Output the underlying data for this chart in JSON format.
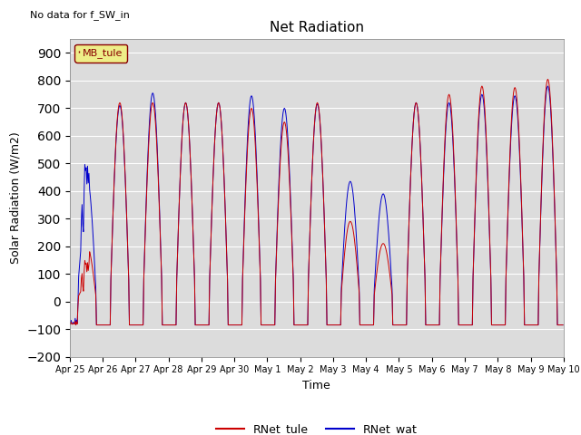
{
  "title": "Net Radiation",
  "xlabel": "Time",
  "ylabel": "Solar Radiation (W/m2)",
  "top_left_text": "No data for f_SW_in",
  "legend_box_text": "MB_tule",
  "ylim": [
    -200,
    950
  ],
  "yticks": [
    -200,
    -100,
    0,
    100,
    200,
    300,
    400,
    500,
    600,
    700,
    800,
    900
  ],
  "background_color": "#e0e0e0",
  "plot_bg_color": "#e8e8e8",
  "line_color_tule": "#cc0000",
  "line_color_wat": "#0000cc",
  "legend_tule": "RNet_tule",
  "legend_wat": "RNet_wat",
  "num_days": 15,
  "xtick_labels": [
    "Apr 25",
    "Apr 26",
    "Apr 27",
    "Apr 28",
    "Apr 29",
    "Apr 30",
    "May 1",
    "May 2",
    "May 3",
    "May 4",
    "May 5",
    "May 6",
    "May 7",
    "May 8",
    "May 9",
    "May 10"
  ],
  "night_val": -85,
  "peaks_tule": [
    200,
    720,
    720,
    720,
    720,
    700,
    650,
    720,
    290,
    210,
    720,
    750,
    780,
    775,
    805
  ],
  "peaks_wat": [
    450,
    710,
    755,
    720,
    720,
    745,
    700,
    715,
    435,
    390,
    720,
    720,
    750,
    745,
    780
  ],
  "mb_box_facecolor": "#eeee88",
  "mb_box_edgecolor": "#880000"
}
